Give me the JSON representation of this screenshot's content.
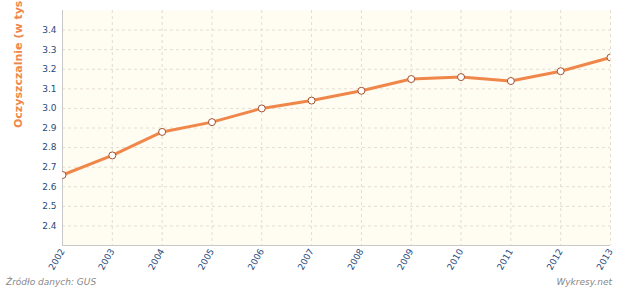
{
  "chart_data": {
    "type": "line",
    "y_label": "Oczyszczalnie (w tys.)",
    "source": "Źródło danych: GUS",
    "credit": "Wykresy.net",
    "x": [
      2002,
      2003,
      2004,
      2005,
      2006,
      2007,
      2008,
      2009,
      2010,
      2011,
      2012,
      2013
    ],
    "values": [
      2.66,
      2.76,
      2.88,
      2.93,
      3.0,
      3.04,
      3.09,
      3.15,
      3.16,
      3.14,
      3.19,
      3.26
    ],
    "color": "#f0874a",
    "marker": "circle",
    "grid": true,
    "xlim": [
      2002,
      2013
    ],
    "xticks": [
      2002,
      2003,
      2004,
      2005,
      2006,
      2007,
      2008,
      2009,
      2010,
      2011,
      2012,
      2013
    ],
    "ylim": [
      2.3,
      3.5
    ],
    "yticks": [
      2.4,
      2.5,
      2.6,
      2.7,
      2.8,
      2.9,
      {
        "value": 3,
        "label": "3.0"
      },
      3.1,
      3.2,
      3.3,
      3.4
    ]
  }
}
